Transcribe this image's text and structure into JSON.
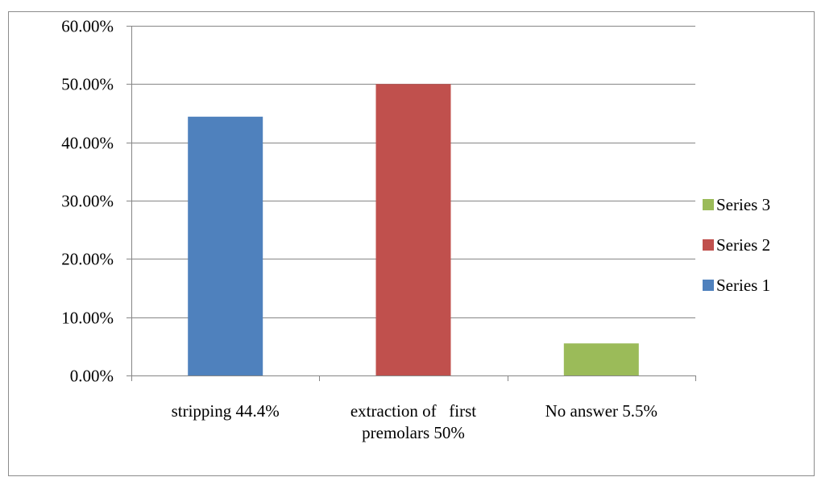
{
  "chart_data": {
    "type": "bar",
    "title": "",
    "xlabel": "",
    "ylabel": "",
    "categories": [
      [
        "stripping 44.4%"
      ],
      [
        "extraction of   first",
        "premolars 50%"
      ],
      [
        "No answer 5.5%"
      ]
    ],
    "series": [
      {
        "name": "Series 1",
        "color": "#4F81BD",
        "values": [
          0.444,
          null,
          null
        ]
      },
      {
        "name": "Series 2",
        "color": "#C0504D",
        "values": [
          null,
          0.5,
          null
        ]
      },
      {
        "name": "Series 3",
        "color": "#9BBB59",
        "values": [
          null,
          null,
          0.055
        ]
      }
    ],
    "ylim": [
      0,
      0.6
    ],
    "yticks": [
      0,
      0.1,
      0.2,
      0.3,
      0.4,
      0.5,
      0.6
    ],
    "ytick_labels": [
      "0.00%",
      "10.00%",
      "20.00%",
      "30.00%",
      "40.00%",
      "50.00%",
      "60.00%"
    ],
    "grid": true,
    "legend": {
      "position": "right",
      "order": [
        "Series 3",
        "Series 2",
        "Series 1"
      ]
    }
  }
}
